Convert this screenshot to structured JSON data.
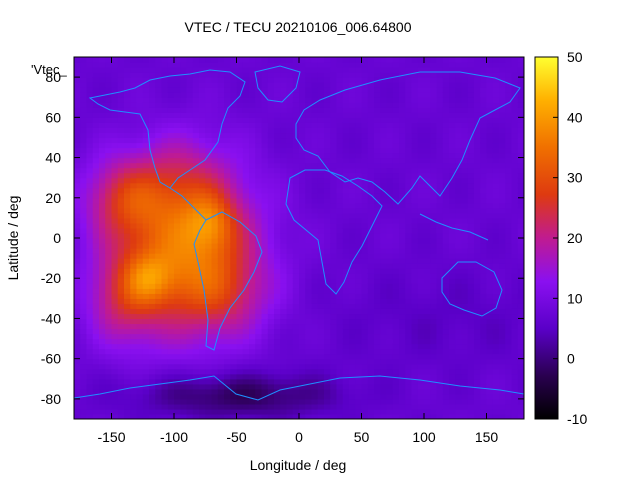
{
  "chart_data": {
    "type": "heatmap",
    "title": "VTEC / TECU 20210106_006.64800",
    "xlabel": "Longitude / deg",
    "ylabel": "Latitude / deg",
    "xlim": [
      -180,
      180
    ],
    "ylim": [
      -90,
      90
    ],
    "x_ticks": [
      -150,
      -100,
      -50,
      0,
      50,
      100,
      150
    ],
    "y_ticks": [
      -80,
      -60,
      -40,
      -20,
      0,
      20,
      40,
      60,
      80
    ],
    "x_tick_labels": [
      "-150",
      "-100",
      "-50",
      "0",
      "50",
      "100",
      "150"
    ],
    "y_tick_labels": [
      "-80",
      "-60",
      "-40",
      "-20",
      "0",
      "20",
      "40",
      "60",
      "80"
    ],
    "colorbar": {
      "min": -10,
      "max": 50,
      "ticks": [
        -10,
        0,
        10,
        20,
        30,
        40,
        50
      ],
      "tick_labels": [
        "-10",
        "0",
        "10",
        "20",
        "30",
        "40",
        "50"
      ]
    },
    "legend_entry": "'Vtec_",
    "legend_position": "top-left",
    "background_vtec": 7,
    "anomalies": [
      {
        "lon": -140,
        "lat": 20,
        "sigma_lon": 22,
        "sigma_lat": 14,
        "amp": 14
      },
      {
        "lon": -140,
        "lat": -30,
        "sigma_lon": 20,
        "sigma_lat": 16,
        "amp": 12
      },
      {
        "lon": -90,
        "lat": -5,
        "sigma_lon": 38,
        "sigma_lat": 28,
        "amp": 27
      },
      {
        "lon": -120,
        "lat": -20,
        "sigma_lon": 14,
        "sigma_lat": 9,
        "amp": 10
      },
      {
        "lon": -70,
        "lat": 8,
        "sigma_lon": 14,
        "sigma_lat": 10,
        "amp": 10
      },
      {
        "lon": -95,
        "lat": 30,
        "sigma_lon": 25,
        "sigma_lat": 15,
        "amp": 6
      },
      {
        "lon": -60,
        "lat": -28,
        "sigma_lon": 26,
        "sigma_lat": 14,
        "amp": 8
      },
      {
        "lon": -50,
        "lat": -78,
        "sigma_lon": 55,
        "sigma_lat": 8,
        "amp": -9
      },
      {
        "lon": 120,
        "lat": -40,
        "sigma_lon": 70,
        "sigma_lat": 18,
        "amp": -2
      }
    ],
    "colors": {
      "frame": "#000000",
      "coastline": "#1e90ff",
      "cmap": [
        "#000000",
        "#2a0050",
        "#5a00c8",
        "#8a10f0",
        "#c01b90",
        "#de3a10",
        "#f07000",
        "#ffb000",
        "#ffff30"
      ]
    }
  }
}
